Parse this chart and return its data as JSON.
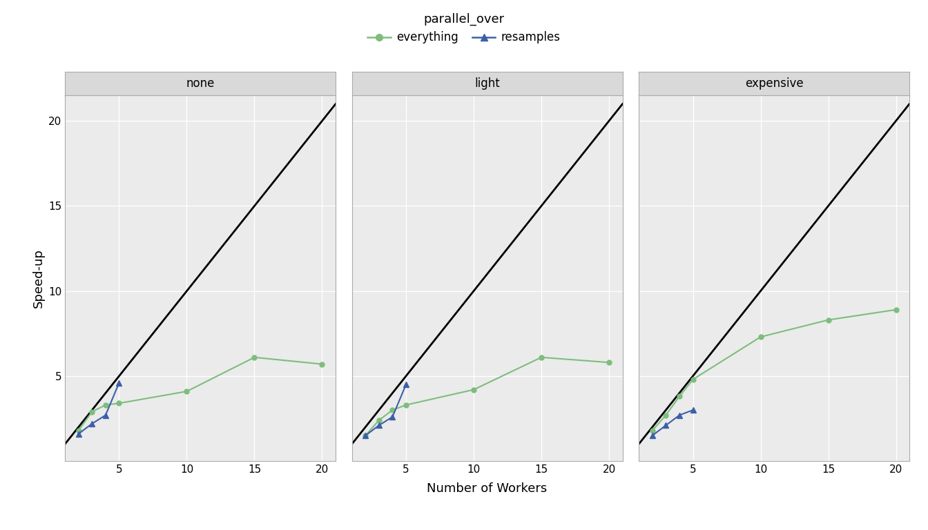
{
  "panels": [
    "none",
    "light",
    "expensive"
  ],
  "xlabel": "Number of Workers",
  "ylabel": "Speed-up",
  "legend_title": "parallel_over",
  "xlim": [
    1,
    21
  ],
  "ylim": [
    0.5,
    21.5
  ],
  "xticks": [
    5,
    10,
    15,
    20
  ],
  "yticks": [
    0,
    5,
    10,
    15,
    20
  ],
  "yticklabels": [
    "",
    "5",
    "10",
    "15",
    "20"
  ],
  "background_color": "#FFFFFF",
  "panel_bg": "#EBEBEB",
  "strip_bg": "#D9D9D9",
  "strip_border": "#BBBBBB",
  "grid_color": "#FFFFFF",
  "everything_color": "#7DBD7D",
  "resamples_color": "#3C5FA8",
  "series": {
    "none": {
      "everything": {
        "x": [
          2,
          3,
          4,
          5,
          10,
          15,
          20
        ],
        "y": [
          1.8,
          2.9,
          3.3,
          3.4,
          4.1,
          6.1,
          5.7
        ]
      },
      "resamples": {
        "x": [
          2,
          3,
          4,
          5
        ],
        "y": [
          1.6,
          2.2,
          2.7,
          4.6
        ]
      }
    },
    "light": {
      "everything": {
        "x": [
          2,
          3,
          4,
          5,
          10,
          15,
          20
        ],
        "y": [
          1.5,
          2.4,
          3.0,
          3.3,
          4.2,
          6.1,
          5.8
        ]
      },
      "resamples": {
        "x": [
          2,
          3,
          4,
          5
        ],
        "y": [
          1.5,
          2.1,
          2.6,
          4.5
        ]
      }
    },
    "expensive": {
      "everything": {
        "x": [
          2,
          3,
          4,
          5,
          10,
          15,
          20
        ],
        "y": [
          1.8,
          2.7,
          3.8,
          4.8,
          7.3,
          8.3,
          8.9
        ]
      },
      "resamples": {
        "x": [
          2,
          3,
          4,
          5
        ],
        "y": [
          1.5,
          2.1,
          2.7,
          3.0
        ]
      }
    }
  }
}
